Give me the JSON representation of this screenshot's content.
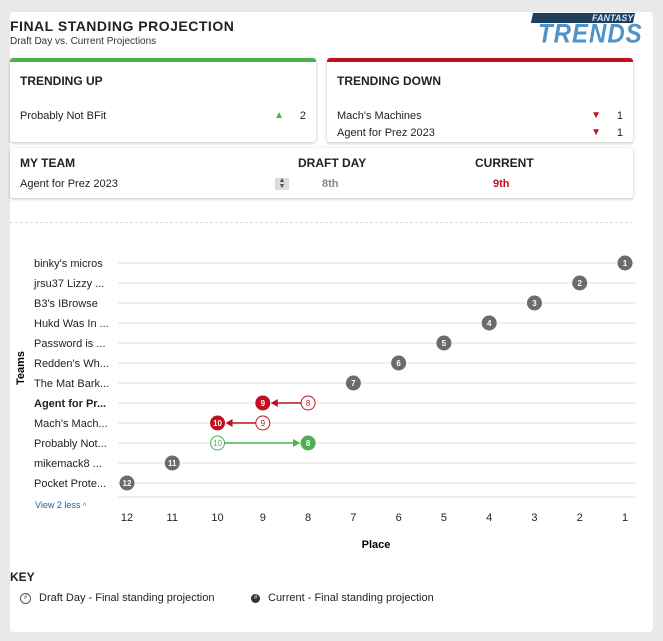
{
  "header": {
    "title": "FINAL STANDING PROJECTION",
    "subtitle": "Draft Day vs. Current Projections",
    "logo_top": "FANTASY",
    "logo_main": "TRENDS"
  },
  "trending_up": {
    "title": "TRENDING UP",
    "items": [
      {
        "name": "Probably Not BFit",
        "arrow": "▲",
        "change": "2"
      }
    ]
  },
  "trending_down": {
    "title": "TRENDING DOWN",
    "items": [
      {
        "name": "Mach's Machines",
        "arrow": "▼",
        "change": "1"
      },
      {
        "name": "Agent for Prez 2023",
        "arrow": "▼",
        "change": "1"
      }
    ]
  },
  "my_team": {
    "label": "MY TEAM",
    "value": "Agent for Prez 2023",
    "draft_label": "DRAFT DAY",
    "draft_value": "8th",
    "current_label": "CURRENT",
    "current_value": "9th"
  },
  "chart_data": {
    "type": "scatter",
    "xlabel": "Place",
    "ylabel": "Teams",
    "xlim": [
      12,
      1
    ],
    "x_ticks": [
      "12",
      "11",
      "10",
      "9",
      "8",
      "7",
      "6",
      "5",
      "4",
      "3",
      "2",
      "1"
    ],
    "teams": [
      {
        "name": "binky's micros",
        "current": 1,
        "draft": null,
        "status": "same"
      },
      {
        "name": "jrsu37 Lizzy ...",
        "current": 2,
        "draft": null,
        "status": "same"
      },
      {
        "name": "B3's IBrowse",
        "current": 3,
        "draft": null,
        "status": "same"
      },
      {
        "name": "Hukd Was In ...",
        "current": 4,
        "draft": null,
        "status": "same"
      },
      {
        "name": "Password is ...",
        "current": 5,
        "draft": null,
        "status": "same"
      },
      {
        "name": "Redden's Wh...",
        "current": 6,
        "draft": null,
        "status": "same"
      },
      {
        "name": "The Mat Bark...",
        "current": 7,
        "draft": null,
        "status": "same"
      },
      {
        "name": "Agent for Pr...",
        "current": 9,
        "draft": 8,
        "status": "down",
        "bold": true
      },
      {
        "name": "Mach's Mach...",
        "current": 10,
        "draft": 9,
        "status": "down"
      },
      {
        "name": "Probably Not...",
        "current": 8,
        "draft": 10,
        "status": "up"
      },
      {
        "name": "mikemack8 ...",
        "current": 11,
        "draft": null,
        "status": "same"
      },
      {
        "name": "Pocket Prote...",
        "current": 12,
        "draft": null,
        "status": "same"
      }
    ],
    "colors": {
      "same": "#6b6b6b",
      "up": "#4caf50",
      "down": "#c0101f"
    }
  },
  "view_less": "View 2 less",
  "view_less_icon": "chevron-up-icon",
  "key": {
    "title": "KEY",
    "draft_label": "Draft Day - Final standing projection",
    "current_label": "Current - Final standing projection",
    "draft_symbol": "#",
    "current_symbol": "#"
  }
}
